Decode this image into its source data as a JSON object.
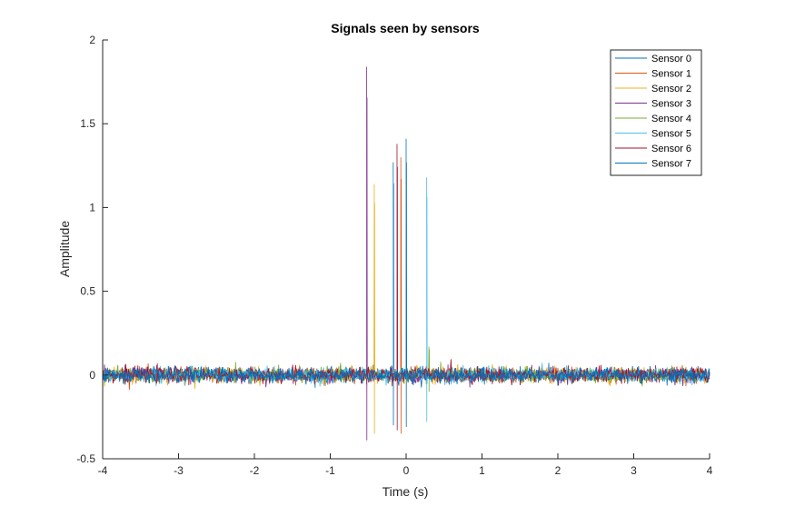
{
  "chart_data": {
    "type": "line",
    "title": "Signals seen by sensors",
    "xlabel": "Time (s)",
    "ylabel": "Amplitude",
    "xlim": [
      -4,
      4
    ],
    "ylim": [
      -0.5,
      2
    ],
    "xticks": [
      -4,
      -3,
      -2,
      -1,
      0,
      1,
      2,
      3,
      4
    ],
    "xtick_labels": [
      "-4",
      "-3",
      "-2",
      "-1",
      "0",
      "1",
      "2",
      "3",
      "4"
    ],
    "yticks": [
      -0.5,
      0,
      0.5,
      1,
      1.5,
      2
    ],
    "ytick_labels": [
      "-0.5",
      "0",
      "0.5",
      "1",
      "1.5",
      "2"
    ],
    "grid": false,
    "legend_position": "top-right",
    "noise_amplitude": 0.04,
    "series": [
      {
        "name": "Sensor 0",
        "color": "#0072BD",
        "pulse": {
          "t": -0.17,
          "values": [
            1.27,
            -0.3
          ]
        }
      },
      {
        "name": "Sensor 1",
        "color": "#D95319",
        "pulse": {
          "t": -0.07,
          "values": [
            1.3,
            -0.35
          ]
        }
      },
      {
        "name": "Sensor 2",
        "color": "#EDB120",
        "pulse": {
          "t": -0.42,
          "values": [
            1.14,
            -0.35
          ]
        }
      },
      {
        "name": "Sensor 3",
        "color": "#7E2F8E",
        "pulse": {
          "t": -0.52,
          "values": [
            1.84,
            -0.39
          ]
        }
      },
      {
        "name": "Sensor 4",
        "color": "#77AC30",
        "pulse": {
          "t": 0.3,
          "values": [
            0.17,
            -0.1
          ]
        }
      },
      {
        "name": "Sensor 5",
        "color": "#4DBEEE",
        "pulse": {
          "t": 0.27,
          "values": [
            1.18,
            -0.28
          ]
        }
      },
      {
        "name": "Sensor 6",
        "color": "#A2142F",
        "pulse": {
          "t": -0.12,
          "values": [
            1.38,
            -0.33
          ]
        }
      },
      {
        "name": "Sensor 7",
        "color": "#0072BD",
        "pulse": {
          "t": 0.0,
          "values": [
            1.41,
            -0.31
          ]
        }
      }
    ]
  }
}
